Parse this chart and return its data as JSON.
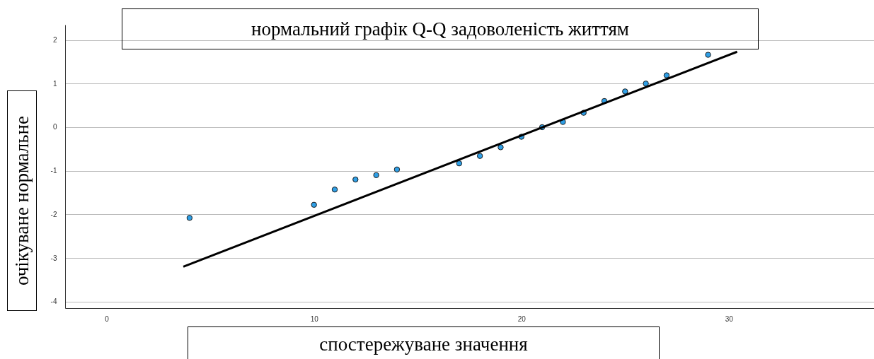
{
  "chart_data": {
    "type": "scatter",
    "title": "нормальний графік Q-Q задоволеність життям",
    "xlabel": "спостережуване значення",
    "ylabel": "очікуване нормальне",
    "xlim": [
      -2,
      37
    ],
    "xticks": [
      0,
      10,
      20,
      30
    ],
    "ylim": [
      -4.15,
      2.35
    ],
    "yticks": [
      -4,
      -3,
      -2,
      -1,
      0,
      1,
      2
    ],
    "grid": "y",
    "series": [
      {
        "marker": "circle",
        "color": "#2f9fe6",
        "x": [
          4,
          10,
          11,
          12,
          13,
          14,
          17,
          18,
          19,
          20,
          21,
          22,
          23,
          24,
          25,
          26,
          27,
          29
        ],
        "values": [
          -2.08,
          -1.78,
          -1.43,
          -1.2,
          -1.1,
          -0.97,
          -0.83,
          -0.66,
          -0.46,
          -0.22,
          0.0,
          0.12,
          0.33,
          0.6,
          0.82,
          1.0,
          1.19,
          1.66
        ]
      },
      {
        "type": "line",
        "color": "#000000",
        "x": [
          3.7,
          30.4
        ],
        "values": [
          -3.2,
          1.73
        ]
      }
    ]
  }
}
